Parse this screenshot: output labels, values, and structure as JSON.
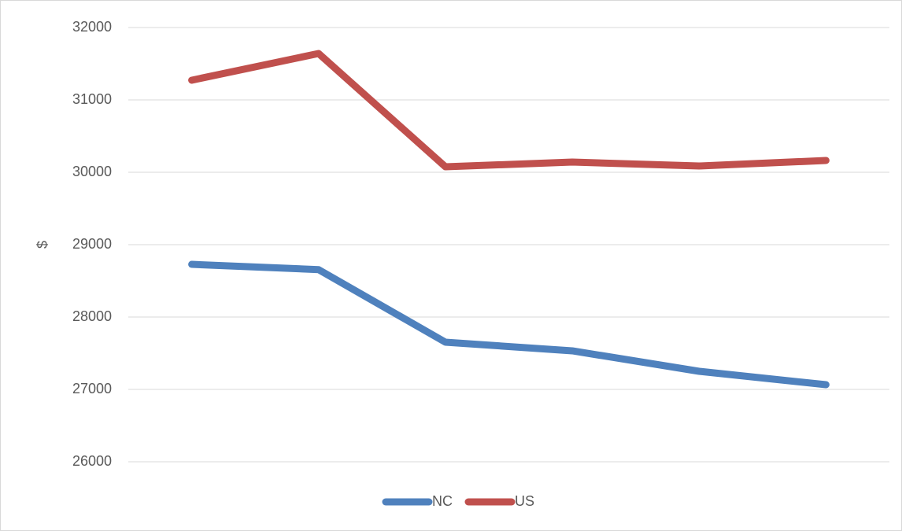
{
  "chart_data": {
    "type": "line",
    "y_label": "$",
    "categories": [
      null,
      null,
      null,
      null,
      null,
      null
    ],
    "series": [
      {
        "name": "NC",
        "color": "#4f81bd",
        "values": [
          28728,
          28655,
          27652,
          27533,
          27250,
          27065
        ]
      },
      {
        "name": "US",
        "color": "#c0504d",
        "values": [
          31272,
          31641,
          30076,
          30141,
          30087,
          30163
        ]
      }
    ],
    "ylim": [
      26000,
      32000
    ],
    "yticks": [
      26000,
      27000,
      28000,
      29000,
      30000,
      31000,
      32000
    ],
    "grid": true,
    "legend": "bottom"
  }
}
